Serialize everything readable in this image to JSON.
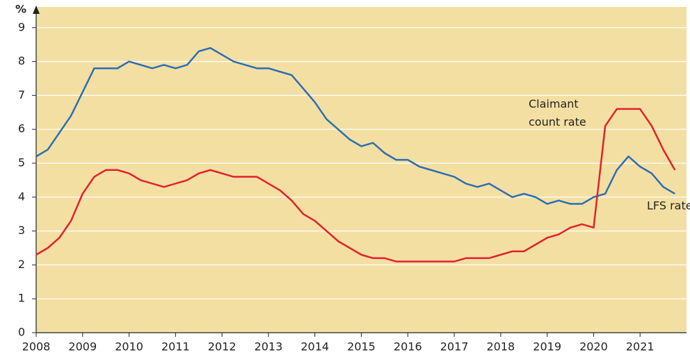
{
  "chart_data": {
    "type": "line",
    "y_label": "%",
    "x": [
      2008,
      2008.25,
      2008.5,
      2008.75,
      2009,
      2009.25,
      2009.5,
      2009.75,
      2010,
      2010.25,
      2010.5,
      2010.75,
      2011,
      2011.25,
      2011.5,
      2011.75,
      2012,
      2012.25,
      2012.5,
      2012.75,
      2013,
      2013.25,
      2013.5,
      2013.75,
      2014,
      2014.25,
      2014.5,
      2014.75,
      2015,
      2015.25,
      2015.5,
      2015.75,
      2016,
      2016.25,
      2016.5,
      2016.75,
      2017,
      2017.25,
      2017.5,
      2017.75,
      2018,
      2018.25,
      2018.5,
      2018.75,
      2019,
      2019.25,
      2019.5,
      2019.75,
      2020,
      2020.25,
      2020.5,
      2020.75,
      2021,
      2021.25,
      2021.5,
      2021.75
    ],
    "series": [
      {
        "name": "LFS rate",
        "color": "#2a6db4",
        "values": [
          5.2,
          5.4,
          5.9,
          6.4,
          7.1,
          7.8,
          7.8,
          7.8,
          8.0,
          7.9,
          7.8,
          7.9,
          7.8,
          7.9,
          8.3,
          8.4,
          8.2,
          8.0,
          7.9,
          7.8,
          7.8,
          7.7,
          7.6,
          7.2,
          6.8,
          6.3,
          6.0,
          5.7,
          5.5,
          5.6,
          5.3,
          5.1,
          5.1,
          4.9,
          4.8,
          4.7,
          4.6,
          4.4,
          4.3,
          4.4,
          4.2,
          4.0,
          4.1,
          4.0,
          3.8,
          3.9,
          3.8,
          3.8,
          4.0,
          4.1,
          4.8,
          5.2,
          4.9,
          4.7,
          4.3,
          4.1
        ]
      },
      {
        "name": "Claimant count rate",
        "color": "#e2202b",
        "values": [
          2.3,
          2.5,
          2.8,
          3.3,
          4.1,
          4.6,
          4.8,
          4.8,
          4.7,
          4.5,
          4.4,
          4.3,
          4.4,
          4.5,
          4.7,
          4.8,
          4.7,
          4.6,
          4.6,
          4.6,
          4.4,
          4.2,
          3.9,
          3.5,
          3.3,
          3.0,
          2.7,
          2.5,
          2.3,
          2.2,
          2.2,
          2.1,
          2.1,
          2.1,
          2.1,
          2.1,
          2.1,
          2.2,
          2.2,
          2.2,
          2.3,
          2.4,
          2.4,
          2.6,
          2.8,
          2.9,
          3.1,
          3.2,
          3.1,
          6.1,
          6.6,
          6.6,
          6.6,
          6.1,
          5.4,
          4.8
        ]
      }
    ],
    "xlim": [
      2008,
      2022
    ],
    "xticks": [
      2008,
      2009,
      2010,
      2011,
      2012,
      2013,
      2014,
      2015,
      2016,
      2017,
      2018,
      2019,
      2020,
      2021
    ],
    "ylim": [
      0,
      9.5
    ],
    "yticks": [
      0,
      1,
      2,
      3,
      4,
      5,
      6,
      7,
      8,
      9
    ],
    "grid": true
  }
}
